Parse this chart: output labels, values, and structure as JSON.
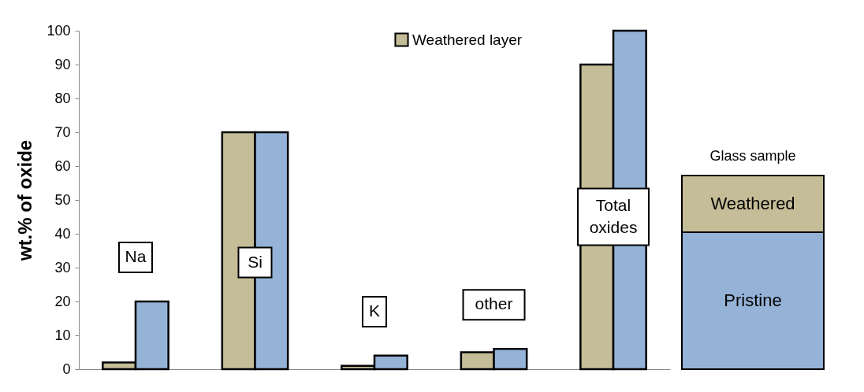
{
  "chart_data": {
    "type": "bar",
    "ylabel": "wt.% of oxide",
    "categories": [
      "Na",
      "Si",
      "K",
      "other",
      "Total oxides"
    ],
    "series": [
      {
        "name": "Weathered layer",
        "color": "#c4bd97",
        "values": [
          2,
          70,
          1,
          5,
          90
        ]
      },
      {
        "color": "#95b3d7",
        "values": [
          20,
          70,
          4,
          6,
          100
        ]
      }
    ],
    "ylim": [
      0,
      100
    ],
    "yticks": [
      0,
      10,
      20,
      30,
      40,
      50,
      60,
      70,
      80,
      90,
      100
    ],
    "grid": false,
    "legend": "top",
    "tick_labels": "y",
    "annotations": [
      "Glass sample",
      "Weathered",
      "Pristine"
    ]
  }
}
